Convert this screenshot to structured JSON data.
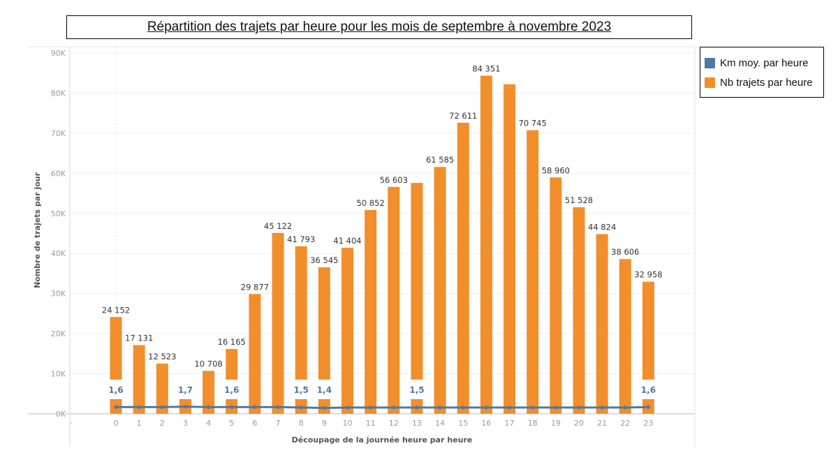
{
  "chart_data": {
    "type": "bar",
    "title": "Répartition des trajets par heure pour les mois de septembre à novembre 2023",
    "xlabel": "Découpage de la journée heure par heure",
    "ylabel": "Nombre de trajets par jour",
    "ylim": [
      0,
      90000
    ],
    "y_ticks": [
      "0K",
      "10K",
      "20K",
      "30K",
      "40K",
      "50K",
      "60K",
      "70K",
      "80K",
      "90K"
    ],
    "grid": true,
    "legend_position": "right",
    "categories": [
      "0",
      "1",
      "2",
      "3",
      "4",
      "5",
      "6",
      "7",
      "8",
      "9",
      "10",
      "11",
      "12",
      "13",
      "14",
      "15",
      "16",
      "17",
      "18",
      "19",
      "20",
      "21",
      "22",
      "23"
    ],
    "series": [
      {
        "name": "Nb trajets par heure",
        "kind": "bar",
        "color": "#f28e2b",
        "values": [
          24152,
          17131,
          12523,
          4800,
          10708,
          16165,
          29877,
          45122,
          41793,
          36545,
          41404,
          50852,
          56603,
          57600,
          61585,
          72611,
          84351,
          82200,
          70745,
          58960,
          51528,
          44824,
          38606,
          32958
        ],
        "labels": [
          "24 152",
          "17 131",
          "12 523",
          "",
          "10 708",
          "16 165",
          "29 877",
          "45 122",
          "41 793",
          "36 545",
          "41 404",
          "50 852",
          "56 603",
          "",
          "61 585",
          "72 611",
          "84 351",
          "",
          "70 745",
          "58 960",
          "51 528",
          "44 824",
          "38 606",
          "32 958"
        ]
      },
      {
        "name": "Km moy. par heure",
        "kind": "line",
        "color": "#4e79a7",
        "values": [
          1.6,
          1.6,
          1.6,
          1.7,
          1.6,
          1.6,
          1.6,
          1.6,
          1.5,
          1.4,
          1.5,
          1.5,
          1.5,
          1.5,
          1.5,
          1.5,
          1.5,
          1.5,
          1.5,
          1.5,
          1.5,
          1.5,
          1.5,
          1.6
        ],
        "labels": [
          "1,6",
          "",
          "",
          "1,7",
          "",
          "1,6",
          "",
          "",
          "1,5",
          "1,4",
          "",
          "",
          "",
          "1,5",
          "",
          "",
          "",
          "",
          "",
          "",
          "",
          "",
          "",
          "1,6"
        ]
      }
    ]
  }
}
